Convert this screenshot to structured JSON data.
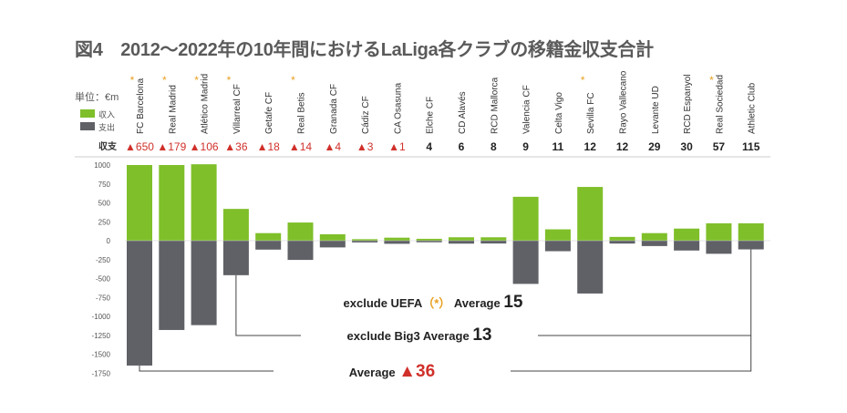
{
  "title": "図4　2012〜2022年の10年間におけるLaLiga各クラブの移籍金収支合計",
  "chart_data": {
    "type": "bar",
    "unit_label": "単位：€m",
    "legend": [
      {
        "name": "収入",
        "color": "#7fbf2a"
      },
      {
        "name": "支出",
        "color": "#5f6166"
      }
    ],
    "net_row_label": "収支",
    "categories": [
      "FC Barcelona",
      "Real Madrid",
      "Atlético Madrid",
      "Villarreal CF",
      "Getafe CF",
      "Real Betis",
      "Granada CF",
      "Cádiz CF",
      "CA Osasuna",
      "Elche CF",
      "CD Alavés",
      "RCD Mallorca",
      "Valencia CF",
      "Celta Vigo",
      "Sevilla FC",
      "Rayo Vallecano",
      "Levante UD",
      "RCD Espanyol",
      "Real Sociedad",
      "Athletic Club"
    ],
    "uefa_marked": [
      true,
      true,
      true,
      true,
      false,
      true,
      false,
      false,
      false,
      false,
      false,
      false,
      false,
      false,
      true,
      false,
      false,
      false,
      true,
      false
    ],
    "net_labels": [
      "▲650",
      "▲179",
      "▲106",
      "▲36",
      "▲18",
      "▲14",
      "▲4",
      "▲3",
      "▲1",
      "4",
      "6",
      "8",
      "9",
      "11",
      "12",
      "12",
      "29",
      "30",
      "57",
      "115"
    ],
    "series": [
      {
        "name": "収入",
        "values": [
          1000,
          1000,
          1010,
          420,
          100,
          240,
          85,
          20,
          40,
          25,
          45,
          45,
          580,
          150,
          710,
          50,
          100,
          160,
          230,
          230
        ]
      },
      {
        "name": "支出",
        "values": [
          -1650,
          -1180,
          -1116,
          -456,
          -118,
          -254,
          -89,
          -23,
          -41,
          -21,
          -39,
          -37,
          -571,
          -139,
          -698,
          -38,
          -71,
          -130,
          -173,
          -115
        ]
      }
    ],
    "yticks": [
      1000,
      750,
      500,
      250,
      0,
      -250,
      -500,
      -750,
      -1000,
      -1250,
      -1500,
      -1750
    ],
    "ylim": [
      -1750,
      1000
    ],
    "annotations": [
      {
        "label": "exclude UEFA",
        "mark": "（*）",
        "suffix": "Average",
        "value": "15"
      },
      {
        "label": "exclude Big3",
        "suffix": "Average",
        "value": "13"
      },
      {
        "label": "",
        "suffix": "Average",
        "value": "▲36"
      }
    ]
  }
}
